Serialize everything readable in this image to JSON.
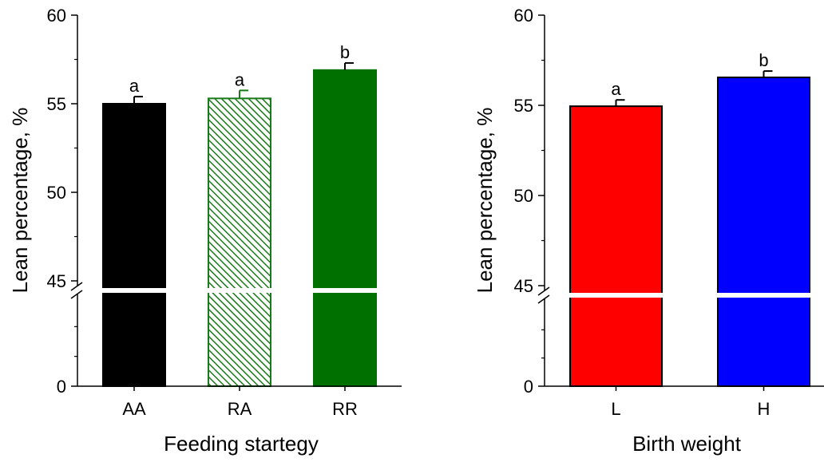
{
  "chart_data": [
    {
      "type": "bar",
      "title": "",
      "xlabel": "Feeding startegy",
      "ylabel": "Lean percentage, %",
      "categories": [
        "AA",
        "RA",
        "RR"
      ],
      "values": [
        55.0,
        55.3,
        56.9
      ],
      "errors": [
        0.4,
        0.45,
        0.4
      ],
      "letters": [
        "a",
        "a",
        "b"
      ],
      "colors": [
        "#000000",
        "#1a7a1a",
        "#007000"
      ],
      "patterns": [
        "solid",
        "hatch",
        "solid"
      ],
      "yticks": [
        0,
        45,
        50,
        55,
        60
      ],
      "ylim": [
        0,
        60
      ],
      "axis_break": [
        0,
        45
      ],
      "legend": "none",
      "grid": false
    },
    {
      "type": "bar",
      "title": "",
      "xlabel": "Birth weight",
      "ylabel": "Lean percentage, %",
      "categories": [
        "L",
        "H"
      ],
      "values": [
        54.95,
        56.55
      ],
      "errors": [
        0.35,
        0.35
      ],
      "letters": [
        "a",
        "b"
      ],
      "colors": [
        "#ff0000",
        "#0000ff"
      ],
      "patterns": [
        "solid",
        "solid"
      ],
      "yticks": [
        0,
        45,
        50,
        55,
        60
      ],
      "ylim": [
        0,
        60
      ],
      "axis_break": [
        0,
        45
      ],
      "legend": "none",
      "grid": false
    }
  ]
}
